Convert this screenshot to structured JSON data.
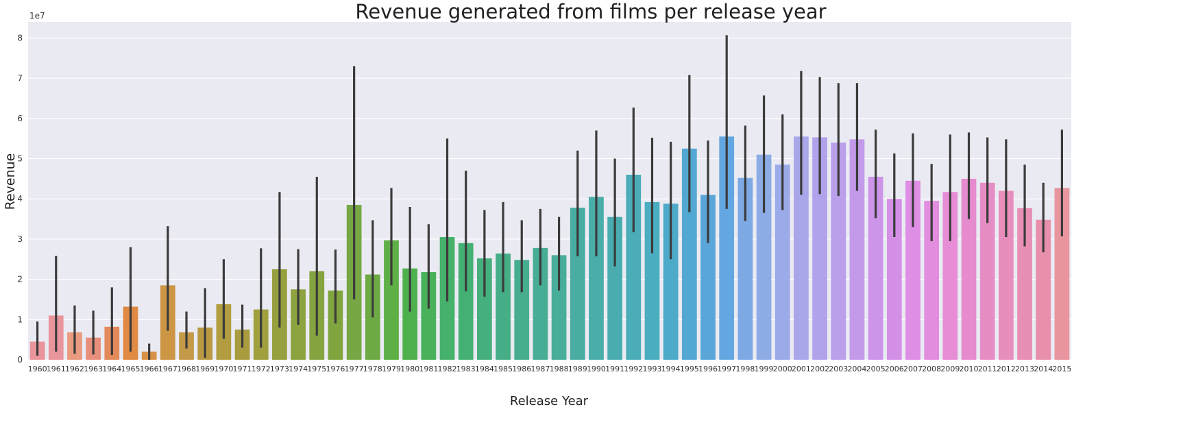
{
  "chart_data": {
    "type": "bar",
    "title": "Revenue generated from films per release year",
    "xlabel": "Release Year",
    "ylabel": "Revenue",
    "y_offset_text": "1e7",
    "y_scale": 10000000,
    "ylim": [
      0,
      8.4
    ],
    "y_ticks": [
      0,
      1,
      2,
      3,
      4,
      5,
      6,
      7,
      8
    ],
    "grid": true,
    "legend": "none",
    "background_color": "#EAEAF2",
    "error_bar_color": "#3B3B3B",
    "categories": [
      "1960",
      "1961",
      "1962",
      "1963",
      "1964",
      "1965",
      "1966",
      "1967",
      "1968",
      "1969",
      "1970",
      "1971",
      "1972",
      "1973",
      "1974",
      "1975",
      "1976",
      "1977",
      "1978",
      "1979",
      "1980",
      "1981",
      "1982",
      "1983",
      "1984",
      "1985",
      "1986",
      "1987",
      "1988",
      "1989",
      "1990",
      "1991",
      "1992",
      "1993",
      "1994",
      "1995",
      "1996",
      "1997",
      "1998",
      "1999",
      "2000",
      "2001",
      "2002",
      "2003",
      "2004",
      "2005",
      "2006",
      "2007",
      "2008",
      "2009",
      "2010",
      "2011",
      "2012",
      "2013",
      "2014",
      "2015"
    ],
    "values": [
      0.45,
      1.1,
      0.68,
      0.55,
      0.82,
      1.32,
      0.2,
      1.85,
      0.68,
      0.8,
      1.38,
      0.75,
      1.25,
      2.25,
      1.75,
      2.2,
      1.72,
      3.85,
      2.12,
      2.97,
      2.27,
      2.18,
      3.05,
      2.9,
      2.52,
      2.64,
      2.48,
      2.78,
      2.6,
      3.78,
      4.05,
      3.55,
      4.6,
      3.92,
      3.88,
      5.25,
      4.1,
      5.55,
      4.52,
      5.1,
      4.85,
      5.55,
      5.53,
      5.4,
      5.48,
      4.55,
      4.0,
      4.45,
      3.95,
      4.17,
      4.5,
      4.4,
      4.2,
      3.77,
      3.48,
      4.27
    ],
    "ci_low": [
      0.1,
      0.2,
      0.15,
      0.13,
      0.12,
      0.2,
      0.0,
      0.72,
      0.28,
      0.05,
      0.52,
      0.3,
      0.3,
      0.8,
      0.87,
      0.6,
      0.9,
      1.5,
      1.05,
      1.85,
      1.2,
      1.27,
      1.45,
      1.7,
      1.57,
      1.68,
      1.68,
      1.85,
      1.72,
      2.57,
      2.57,
      2.32,
      3.17,
      2.65,
      2.5,
      3.67,
      2.9,
      3.75,
      3.45,
      3.65,
      3.72,
      4.1,
      4.12,
      4.07,
      4.2,
      3.52,
      3.05,
      3.3,
      2.95,
      2.95,
      3.5,
      3.4,
      3.05,
      2.82,
      2.67,
      3.07
    ],
    "ci_high": [
      0.95,
      2.58,
      1.35,
      1.22,
      1.8,
      2.8,
      0.4,
      3.32,
      1.2,
      1.78,
      2.5,
      1.37,
      2.77,
      4.17,
      2.75,
      4.55,
      2.74,
      7.3,
      3.47,
      4.27,
      3.8,
      3.37,
      5.5,
      4.7,
      3.72,
      3.92,
      3.47,
      3.75,
      3.55,
      5.2,
      5.7,
      5.0,
      6.27,
      5.52,
      5.42,
      7.08,
      5.45,
      8.07,
      5.82,
      6.57,
      6.1,
      7.18,
      7.03,
      6.88,
      6.88,
      5.72,
      5.13,
      5.63,
      4.87,
      5.6,
      5.65,
      5.53,
      5.48,
      4.85,
      4.4,
      5.72
    ],
    "colors": [
      "#E8959B",
      "#E8959B",
      "#EA9A7E",
      "#E88F7B",
      "#E28A5A",
      "#E08A43",
      "#D89146",
      "#CD9644",
      "#C49A48",
      "#B99A42",
      "#B29D40",
      "#A89C3F",
      "#A0A03E",
      "#96A03E",
      "#8DA33F",
      "#85A33F",
      "#80A53F",
      "#76A744",
      "#6EAA44",
      "#5EAF45",
      "#4FB14E",
      "#49B15A",
      "#45B16A",
      "#45B074",
      "#46AF7E",
      "#46AE86",
      "#46AD8E",
      "#47AD94",
      "#48AE9A",
      "#49ADA2",
      "#49ADAA",
      "#49ADB0",
      "#4AADB8",
      "#4BADC0",
      "#4DAAC8",
      "#52A8D2",
      "#5AA6D9",
      "#63A7E2",
      "#7DAAE4",
      "#8DACE6",
      "#9BAAE8",
      "#A9A7EA",
      "#B2A2EB",
      "#BA9FEB",
      "#C39AEA",
      "#CC95E9",
      "#D490E7",
      "#DE8EE5",
      "#E28DDE",
      "#E68DD6",
      "#E68BCE",
      "#E78DC6",
      "#E78EBD",
      "#E88FB5",
      "#E890AB",
      "#E895A0"
    ]
  }
}
